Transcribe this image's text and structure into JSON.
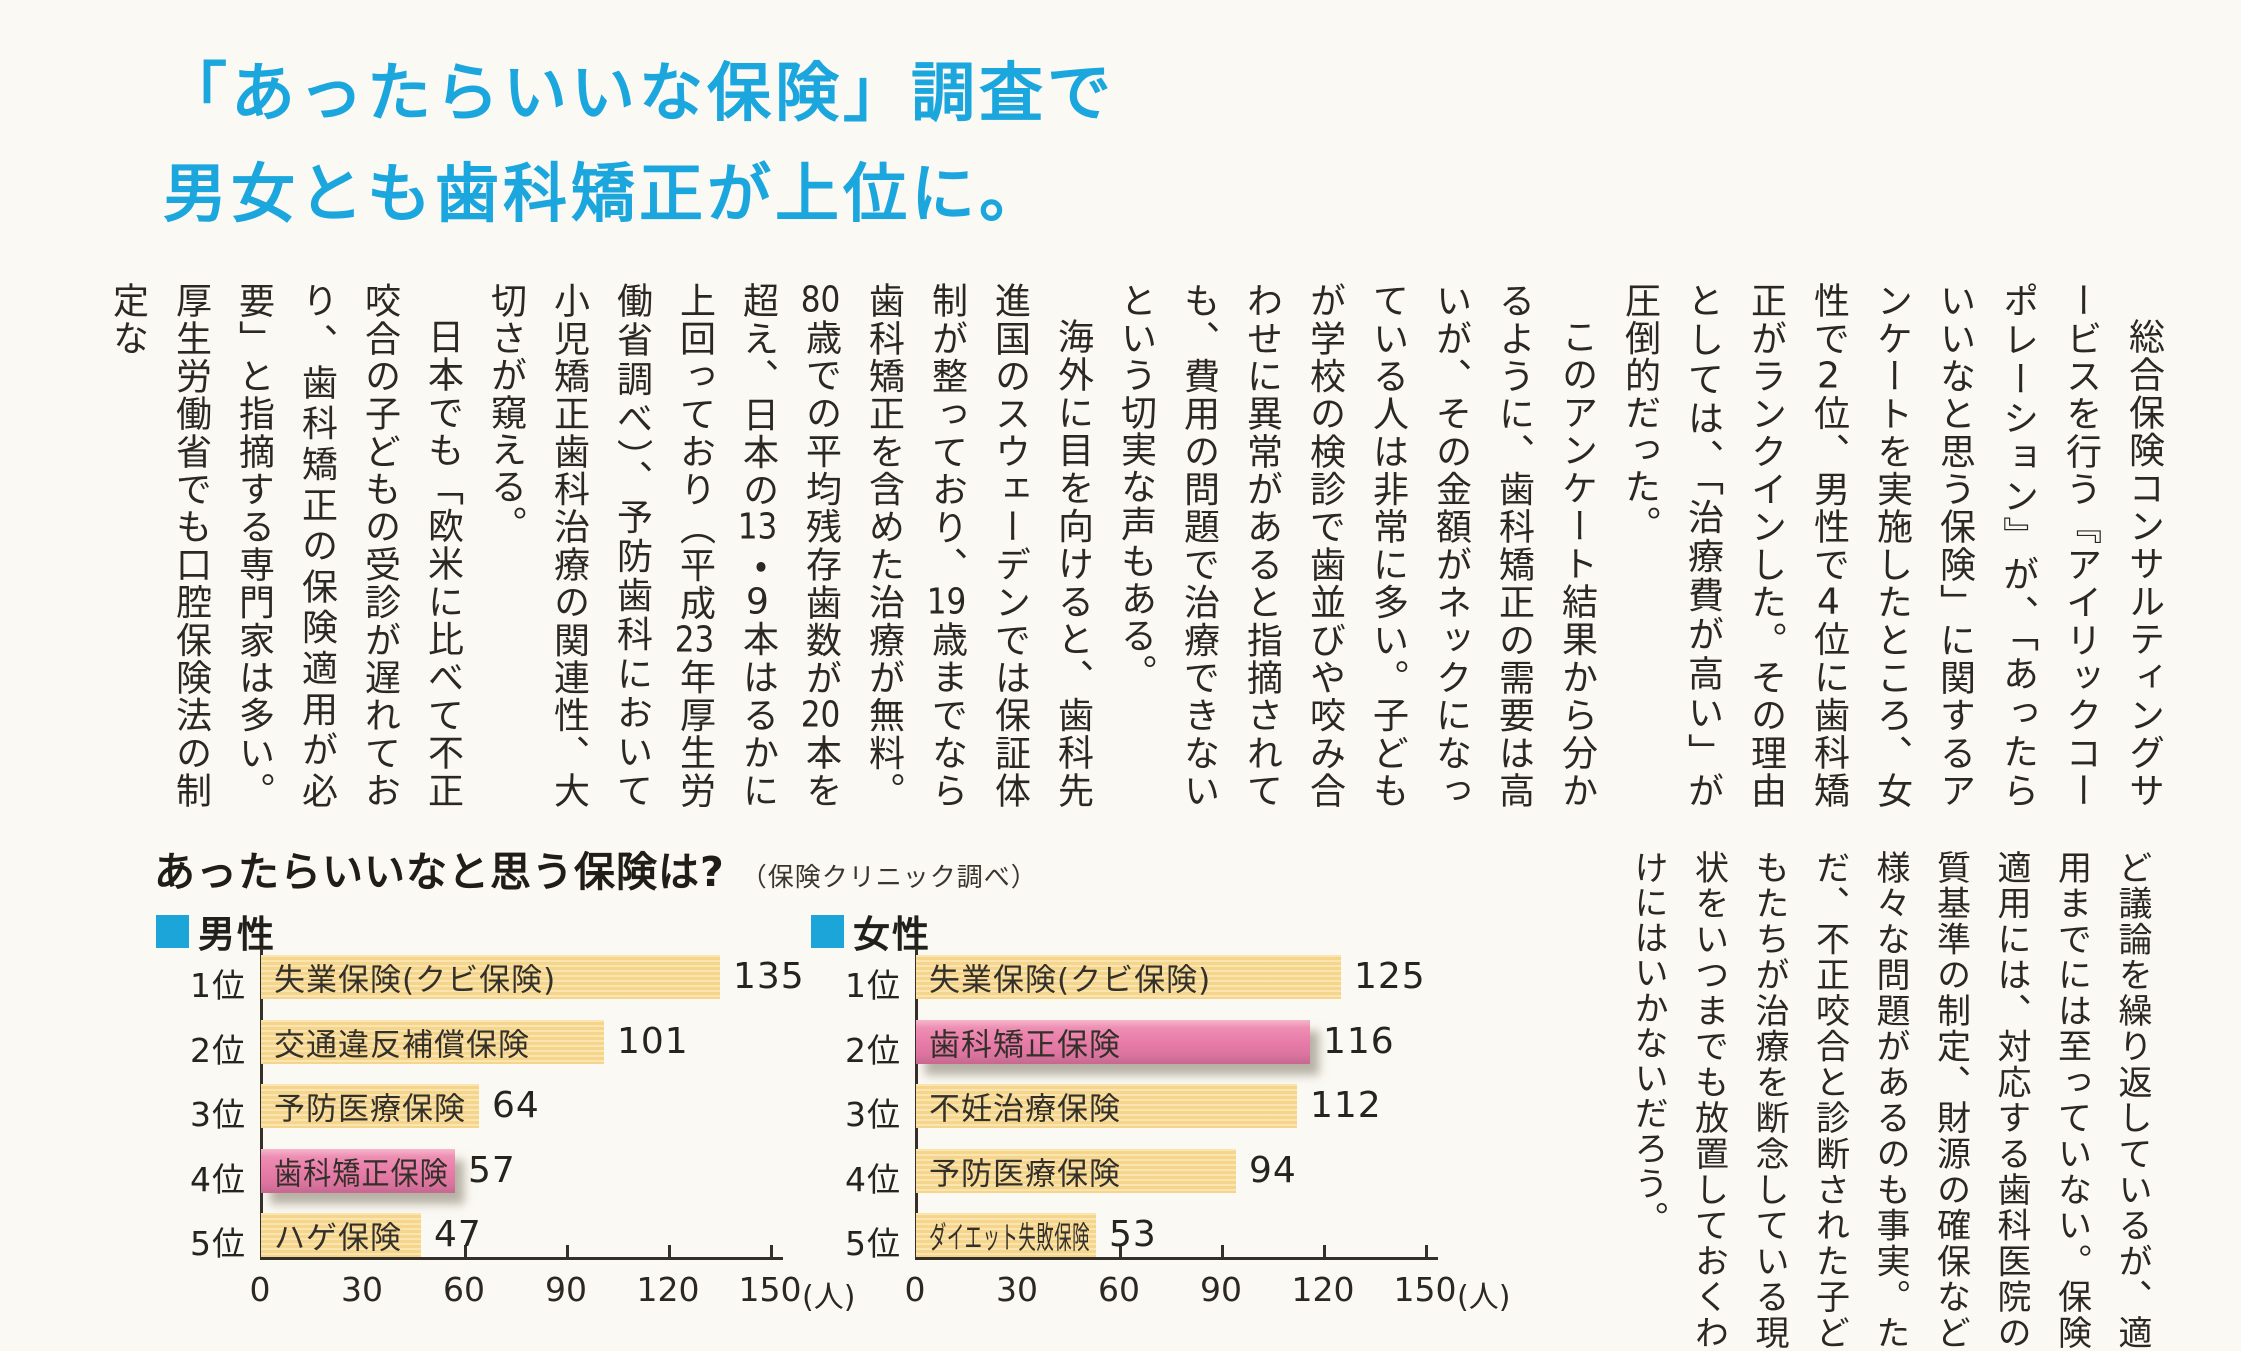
{
  "headline": {
    "line1": "「あったらいいな保険」調査で",
    "line2": "男女とも歯科矯正が上位に。",
    "color": "#1ba7de"
  },
  "article": {
    "paragraphs": [
      "総合保険コンサルティングサービスを行う『アイリックコーポレーション』が、「あったらいいなと思う保険」に関するアンケートを実施したところ、女性で2位、男性で4位に歯科矯正がランクインした。その理由としては、「治療費が高い」が圧倒的だった。",
      "このアンケート結果から分かるように、歯科矯正の需要は高いが、その金額がネックになっている人は非常に多い。子どもが学校の検診で歯並びや咬み合わせに異常があると指摘されても、費用の問題で治療できないという切実な声もある。",
      "海外に目を向けると、歯科先進国のスウェーデンでは保証体制が整っており、19歳までなら歯科矯正を含めた治療が無料。80歳での平均残存歯数が20本を超え、日本の13・9本はるかに上回っており（平成23年厚生労働省調べ）、予防歯科において小児矯正歯科治療の関連性、大切さが窺える。",
      "日本でも「欧米に比べて不正咬合の子どもの受診が遅れており、歯科矯正の保険適用が必要」と指摘する専門家は多い。厚生労働省でも口腔保険法の制定な"
    ],
    "continued_paragraphs": [
      "ど議論を繰り返しているが、適用までには至っていない。保険適用には、対応する歯科医院の質基準の制定、財源の確保など様々な問題があるのも事実。ただ、不正咬合と診断された子どもたちが治療を断念している現状をいつまでも放置しておくわけにはいかないだろう。"
    ]
  },
  "survey": {
    "title": "あったらいいなと思う保険は?",
    "source": "（保険クリニック調べ）"
  },
  "chart_data": [
    {
      "type": "bar",
      "orientation": "horizontal",
      "legend": "男性",
      "legend_color": "#1ca5d8",
      "ranks": [
        "1位",
        "2位",
        "3位",
        "4位",
        "5位"
      ],
      "categories": [
        "失業保険(クビ保険)",
        "交通違反補償保険",
        "予防医療保険",
        "歯科矯正保険",
        "ハゲ保険"
      ],
      "values": [
        135,
        101,
        64,
        57,
        47
      ],
      "highlight_index": 3,
      "xlim": [
        0,
        150
      ],
      "ticks": [
        0,
        30,
        60,
        90,
        120,
        150
      ],
      "unit": "(人)",
      "bar_color": "#f8da92",
      "highlight_color": "#e87ca8"
    },
    {
      "type": "bar",
      "orientation": "horizontal",
      "legend": "女性",
      "legend_color": "#1ca5d8",
      "ranks": [
        "1位",
        "2位",
        "3位",
        "4位",
        "5位"
      ],
      "categories": [
        "失業保険(クビ保険)",
        "歯科矯正保険",
        "不妊治療保険",
        "予防医療保険",
        "ダイエット失敗保険"
      ],
      "values": [
        125,
        116,
        112,
        94,
        53
      ],
      "highlight_index": 1,
      "xlim": [
        0,
        150
      ],
      "ticks": [
        0,
        30,
        60,
        90,
        120,
        150
      ],
      "unit": "(人)",
      "bar_color": "#f8da92",
      "highlight_color": "#e87ca8"
    }
  ]
}
